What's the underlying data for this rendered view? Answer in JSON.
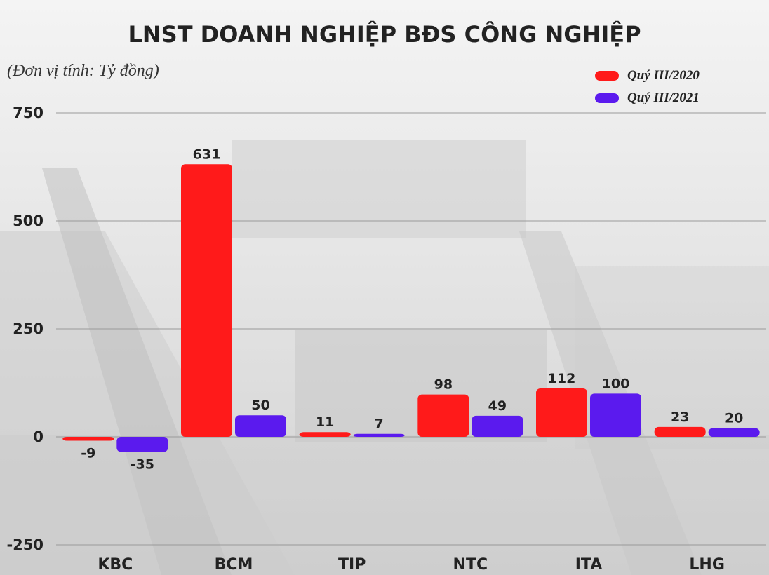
{
  "title": "LNST DOANH NGHIỆP BĐS CÔNG NGHIỆP",
  "unit_note": "(Đơn vị tính: Tỷ đồng)",
  "chart_data": {
    "type": "bar",
    "categories": [
      "KBC",
      "BCM",
      "TIP",
      "NTC",
      "ITA",
      "LHG"
    ],
    "series": [
      {
        "name": "Quý III/2020",
        "color": "#ff1a1a",
        "values": [
          -9,
          631,
          11,
          98,
          112,
          23
        ]
      },
      {
        "name": "Quý III/2021",
        "color": "#5b1aee",
        "values": [
          -35,
          50,
          7,
          49,
          100,
          20
        ]
      }
    ],
    "yticks": [
      -250,
      0,
      250,
      500,
      750
    ],
    "ylim": [
      -250,
      750
    ],
    "grid": true,
    "legend": "top-right",
    "xlabel": "",
    "ylabel": ""
  }
}
